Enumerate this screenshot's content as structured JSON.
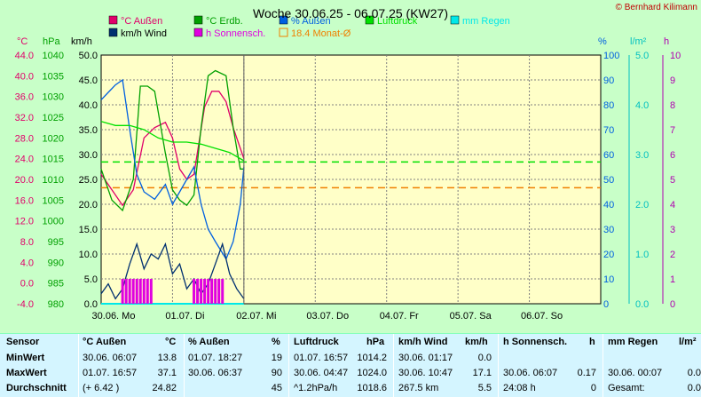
{
  "title": "Woche 30.06.25 - 06.07.25 (KW27)",
  "copyright": "© Bernhard Kilimann",
  "legend": [
    {
      "label": "°C Außen",
      "color": "#e0006a"
    },
    {
      "label": "°C Erdb.",
      "color": "#00a000"
    },
    {
      "label": "% Außen",
      "color": "#0060e0"
    },
    {
      "label": "Luftdruck",
      "color": "#00e000"
    },
    {
      "label": "mm Regen",
      "color": "#00e8e8"
    },
    {
      "label": "km/h Wind",
      "color": "#003070"
    },
    {
      "label": "h Sonnensch.",
      "color": "#e000e0"
    },
    {
      "label": "18.4 Monat-Ø",
      "color": "#f08000"
    }
  ],
  "axis_units": {
    "temp": "°C",
    "pressure": "hPa",
    "wind": "km/h",
    "humidity": "%",
    "rain": "l/m²",
    "sun": "h"
  },
  "axis_colors": {
    "temp": "#e0006a",
    "pressure": "#00a000",
    "wind": "#000000",
    "humidity": "#0060e0",
    "rain": "#00c0c0",
    "sun": "#b000b0"
  },
  "chart_data": {
    "type": "line",
    "title": "Woche 30.06.25 - 06.07.25 (KW27)",
    "x_ticks": [
      "30.06. Mo",
      "01.07. Di",
      "02.07. Mi",
      "03.07. Do",
      "04.07. Fr",
      "05.07. Sa",
      "06.07. So"
    ],
    "y_left_temp": {
      "unit": "°C",
      "ticks": [
        "44.0",
        "40.0",
        "36.0",
        "32.0",
        "28.0",
        "24.0",
        "20.0",
        "16.0",
        "12.0",
        "8.0",
        "4.0",
        "0.0",
        "-4.0"
      ],
      "ylim": [
        -4,
        44
      ]
    },
    "y_left_pressure": {
      "unit": "hPa",
      "ticks": [
        "1040",
        "1035",
        "1030",
        "1025",
        "1020",
        "1015",
        "1010",
        "1005",
        "1000",
        "995",
        "990",
        "985",
        "980"
      ],
      "ylim": [
        980,
        1040
      ]
    },
    "y_left_wind": {
      "unit": "km/h",
      "ticks": [
        "50.0",
        "45.0",
        "40.0",
        "35.0",
        "30.0",
        "25.0",
        "20.0",
        "15.0",
        "10.0",
        "5.0",
        "0.0"
      ],
      "ylim": [
        0,
        50
      ]
    },
    "y_right_humidity": {
      "unit": "%",
      "ticks": [
        "100",
        "90",
        "80",
        "70",
        "60",
        "50",
        "40",
        "30",
        "20",
        "10",
        "0"
      ],
      "ylim": [
        0,
        100
      ]
    },
    "y_right_rain": {
      "unit": "l/m²",
      "ticks": [
        "5.0",
        "4.0",
        "3.0",
        "2.0",
        "1.0",
        "0.0"
      ],
      "ylim": [
        0,
        5
      ]
    },
    "y_right_sun": {
      "unit": "h",
      "ticks": [
        "10",
        "9",
        "8",
        "7",
        "6",
        "5",
        "4",
        "3",
        "2",
        "1",
        "0"
      ],
      "ylim": [
        0,
        10
      ]
    },
    "x_day_range": [
      0,
      7
    ],
    "series": [
      {
        "name": "°C Außen",
        "axis": "temp",
        "color": "#e0006a",
        "x": [
          0,
          0.15,
          0.3,
          0.45,
          0.6,
          0.75,
          0.9,
          1.0,
          1.1,
          1.2,
          1.3,
          1.45,
          1.55,
          1.65,
          1.75,
          1.85,
          1.95,
          2.0
        ],
        "y": [
          21,
          18,
          15,
          18,
          28,
          30,
          31,
          28,
          22,
          20,
          21,
          34,
          37,
          37,
          35,
          30,
          26,
          24
        ]
      },
      {
        "name": "°C Erdb.",
        "axis": "temp",
        "color": "#00a000",
        "x": [
          0,
          0.15,
          0.3,
          0.45,
          0.55,
          0.65,
          0.75,
          0.9,
          1.0,
          1.1,
          1.2,
          1.3,
          1.4,
          1.5,
          1.6,
          1.75,
          1.85,
          1.95,
          2.0
        ],
        "y": [
          22,
          16,
          14,
          20,
          38,
          38,
          37,
          25,
          18,
          16,
          15,
          17,
          30,
          40,
          41,
          40,
          30,
          22,
          22
        ]
      },
      {
        "name": "% Außen",
        "axis": "humidity",
        "color": "#0060e0",
        "x": [
          0,
          0.1,
          0.2,
          0.3,
          0.4,
          0.5,
          0.6,
          0.75,
          0.9,
          1.0,
          1.1,
          1.2,
          1.3,
          1.4,
          1.5,
          1.6,
          1.75,
          1.85,
          1.95,
          2.0
        ],
        "y": [
          82,
          85,
          88,
          90,
          70,
          52,
          45,
          42,
          48,
          40,
          45,
          50,
          55,
          40,
          30,
          25,
          18,
          25,
          40,
          55
        ]
      },
      {
        "name": "Luftdruck",
        "axis": "pressure",
        "color": "#00e000",
        "x": [
          0,
          0.2,
          0.4,
          0.6,
          0.8,
          1.0,
          1.2,
          1.4,
          1.6,
          1.8,
          2.0
        ],
        "y": [
          1024,
          1023,
          1023,
          1022,
          1020,
          1019,
          1019,
          1018.5,
          1017.5,
          1016.5,
          1014.5
        ]
      },
      {
        "name": "km/h Wind",
        "axis": "wind",
        "color": "#003070",
        "x": [
          0,
          0.1,
          0.2,
          0.3,
          0.4,
          0.5,
          0.6,
          0.7,
          0.8,
          0.9,
          1.0,
          1.1,
          1.2,
          1.3,
          1.4,
          1.5,
          1.6,
          1.7,
          1.8,
          1.9,
          2.0
        ],
        "y": [
          2,
          4,
          1,
          3,
          8,
          12,
          7,
          10,
          9,
          12,
          6,
          8,
          3,
          5,
          2,
          4,
          8,
          12,
          6,
          3,
          1
        ]
      },
      {
        "name": "mm Regen",
        "axis": "rain",
        "color": "#00e8e8",
        "x": [
          0,
          2.0
        ],
        "y": [
          0,
          0
        ]
      },
      {
        "name": "h Sonnensch.",
        "axis": "sun",
        "type": "bar",
        "color": "#e000e0",
        "x": [
          0.3,
          0.35,
          0.4,
          0.45,
          0.5,
          0.55,
          0.6,
          0.65,
          0.7,
          1.3,
          1.35,
          1.4,
          1.45,
          1.5,
          1.55,
          1.6,
          1.65,
          1.7
        ],
        "y": [
          1,
          1,
          1,
          1,
          1,
          1,
          1,
          1,
          1,
          1,
          1,
          1,
          1,
          1,
          1,
          1,
          1,
          1
        ]
      }
    ],
    "reference_lines": [
      {
        "name": "Luftdruck reference",
        "axis": "pressure",
        "value": 1014.2,
        "color": "#00e000"
      },
      {
        "name": "18.4 Monat-Ø",
        "axis": "temp",
        "value": 18.4,
        "color": "#f08000"
      }
    ],
    "grid": true
  },
  "stats": {
    "headers": [
      "Sensor",
      "°C  Außen",
      "°C",
      "% Außen",
      "%",
      "Luftdruck",
      "hPa",
      "km/h Wind",
      "km/h",
      "h Sonnensch.",
      "h",
      "mm Regen",
      "l/m²"
    ],
    "rows": [
      {
        "label": "MinWert",
        "temp_time": "30.06.  06:07",
        "temp_val": "13.8",
        "hum_time": "01.07.  18:27",
        "hum_val": "19",
        "press_time": "01.07.  16:57",
        "press_val": "1014.2",
        "wind_time": "30.06.  01:17",
        "wind_val": "0.0",
        "sun_time": "",
        "sun_val": "",
        "rain_time": "",
        "rain_val": ""
      },
      {
        "label": "MaxWert",
        "temp_time": "01.07.  16:57",
        "temp_val": "37.1",
        "hum_time": "30.06.  06:37",
        "hum_val": "90",
        "press_time": "30.06.  04:47",
        "press_val": "1024.0",
        "wind_time": "30.06.  10:47",
        "wind_val": "17.1",
        "sun_time": "30.06.  06:07",
        "sun_val": "0.17",
        "rain_time": "30.06.  00:07",
        "rain_val": "0.0"
      },
      {
        "label": "Durchschnitt",
        "temp_time": "(+ 6.42 )",
        "temp_val": "24.82",
        "hum_time": "",
        "hum_val": "45",
        "press_time": "^1.2hPa/h",
        "press_val": "1018.6",
        "wind_time": "267.5 km",
        "wind_val": "5.5",
        "sun_time": "24:08 h",
        "sun_val": "0",
        "rain_time": "Gesamt:",
        "rain_val": "0.0"
      }
    ]
  }
}
